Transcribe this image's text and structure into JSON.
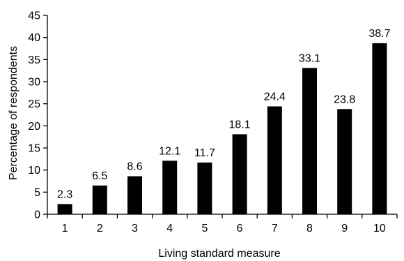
{
  "chart_data": {
    "type": "bar",
    "categories": [
      "1",
      "2",
      "3",
      "4",
      "5",
      "6",
      "7",
      "8",
      "9",
      "10"
    ],
    "values": [
      2.3,
      6.5,
      8.6,
      12.1,
      11.7,
      18.1,
      24.4,
      33.1,
      23.8,
      38.7
    ],
    "value_labels": [
      "2.3",
      "6.5",
      "8.6",
      "12.1",
      "11.7",
      "18.1",
      "24.4",
      "33.1",
      "23.8",
      "38.7"
    ],
    "xlabel": "Living standard measure",
    "ylabel": "Percentage of respondents",
    "ylim": [
      0,
      45
    ],
    "yticks": [
      0,
      5,
      10,
      15,
      20,
      25,
      30,
      35,
      40,
      45
    ],
    "ytick_labels": [
      "0",
      "5",
      "10",
      "15",
      "20",
      "25",
      "30",
      "35",
      "40",
      "45"
    ],
    "grid": false,
    "bar_color": "#000000"
  }
}
